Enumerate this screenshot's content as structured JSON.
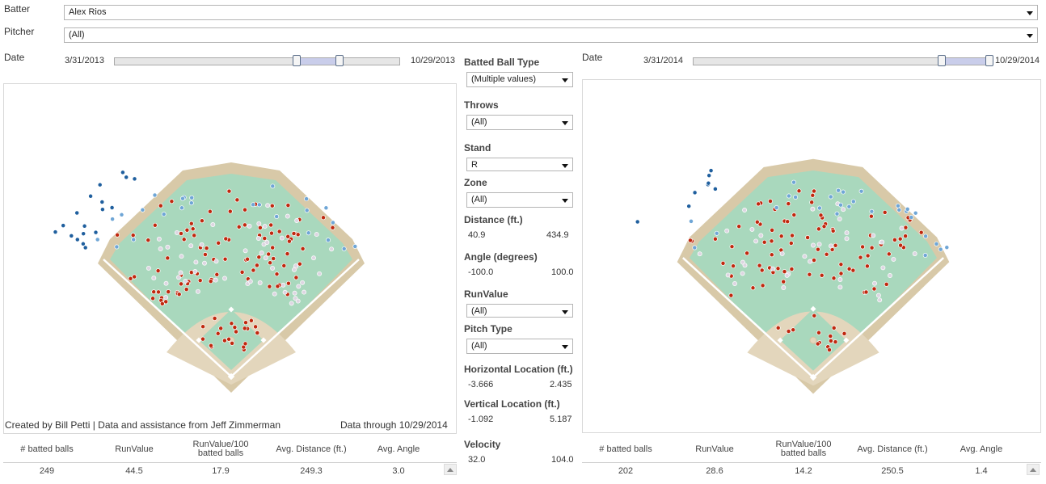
{
  "filters": {
    "batter_label": "Batter",
    "batter_value": "Alex Rios",
    "pitcher_label": "Pitcher",
    "pitcher_value": "(All)"
  },
  "left": {
    "date_label": "Date",
    "date_start": "3/31/2013",
    "date_end": "10/29/2013",
    "slider_low": 0.64,
    "slider_high": 0.79,
    "credit": "Created by Bill Petti | Data and assistance from Jeff Zimmerman",
    "data_through": "Data through 10/29/2014",
    "stats": {
      "headers": [
        "# batted balls",
        "RunValue",
        "RunValue/100\nbatted balls",
        "Avg. Distance (ft.)",
        "Avg. Angle"
      ],
      "values": [
        "249",
        "44.5",
        "17.9",
        "249.3",
        "3.0"
      ]
    }
  },
  "right": {
    "date_label": "Date",
    "date_start": "3/31/2014",
    "date_end": "10/29/2014",
    "slider_low": 0.84,
    "slider_high": 1.0,
    "stats": {
      "headers": [
        "# batted balls",
        "RunValue",
        "RunValue/100\nbatted balls",
        "Avg. Distance (ft.)",
        "Avg. Angle"
      ],
      "values": [
        "202",
        "28.6",
        "14.2",
        "250.5",
        "1.4"
      ]
    }
  },
  "side": {
    "batted_ball_type_label": "Batted Ball Type",
    "batted_ball_type_value": "(Multiple values)",
    "throws_label": "Throws",
    "throws_value": "(All)",
    "stand_label": "Stand",
    "stand_value": "R",
    "zone_label": "Zone",
    "zone_value": "(All)",
    "distance_label": "Distance (ft.)",
    "distance_min": "40.9",
    "distance_max": "434.9",
    "angle_label": "Angle (degrees)",
    "angle_min": "-100.0",
    "angle_max": "100.0",
    "runvalue_label": "RunValue",
    "runvalue_value": "(All)",
    "pitch_type_label": "Pitch Type",
    "pitch_type_value": "(All)",
    "hloc_label": "Horizontal Location (ft.)",
    "hloc_min": "-3.666",
    "hloc_max": "2.435",
    "vloc_label": "Vertical Location (ft.)",
    "vloc_min": "-1.092",
    "vloc_max": "5.187",
    "velocity_label": "Velocity",
    "velocity_min": "32.0",
    "velocity_max": "104.0"
  },
  "colors": {
    "hit_red": "#c0280e",
    "out_light": "#ddd6e2",
    "fly_light_blue": "#6fa6d6",
    "fly_dark_blue": "#1f5f9e",
    "grass": "#a9d8bd",
    "dirt": "#e3d6bc",
    "track": "#d8c9a8"
  }
}
